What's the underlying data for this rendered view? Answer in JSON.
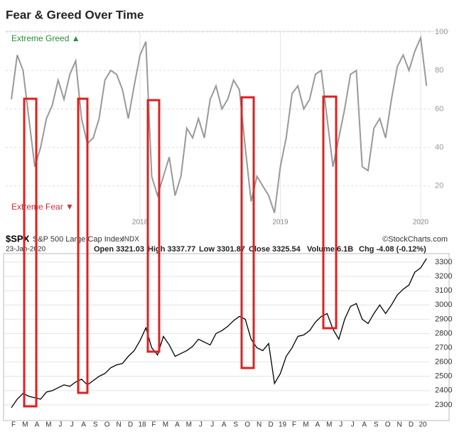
{
  "chart_data": [
    {
      "type": "line",
      "title": "Fear & Greed Over Time",
      "annotations": [
        "Extreme Greed ▲",
        "Extreme Fear ▼"
      ],
      "categories": [
        null,
        null,
        null,
        null,
        null,
        null,
        null,
        null,
        null,
        null,
        null,
        null,
        null,
        null,
        null,
        null,
        null,
        null,
        null,
        null,
        null,
        null,
        "2018",
        null,
        null,
        null,
        null,
        null,
        null,
        null,
        null,
        null,
        null,
        null,
        null,
        null,
        null,
        null,
        null,
        null,
        null,
        null,
        null,
        null,
        null,
        null,
        "2019",
        null,
        null,
        null,
        null,
        null,
        null,
        null,
        null,
        null,
        null,
        null,
        null,
        null,
        null,
        null,
        null,
        null,
        null,
        null,
        null,
        null,
        null,
        null,
        "2020",
        null
      ],
      "series": [
        {
          "color": "#999999",
          "values": [
            65,
            88,
            80,
            55,
            30,
            40,
            55,
            62,
            75,
            65,
            78,
            85,
            55,
            42,
            45,
            55,
            75,
            80,
            78,
            70,
            55,
            72,
            88,
            95,
            25,
            15,
            25,
            35,
            15,
            25,
            50,
            45,
            55,
            45,
            65,
            72,
            60,
            65,
            75,
            70,
            40,
            12,
            25,
            20,
            15,
            6,
            30,
            45,
            68,
            72,
            60,
            65,
            78,
            80,
            55,
            30,
            45,
            60,
            78,
            80,
            30,
            28,
            50,
            55,
            45,
            65,
            82,
            88,
            80,
            90,
            97,
            72
          ]
        }
      ],
      "ylim": [
        0,
        100
      ],
      "yticks": [
        20,
        40,
        60,
        80,
        100
      ],
      "grid": true
    },
    {
      "type": "line",
      "symbol": "$SPX",
      "name": "S&P 500 Large Cap Index",
      "exchange": "INDX",
      "source": "©StockCharts.com",
      "date": "23-Jan-2020",
      "stats": [
        "Open 3321.03",
        "High 3337.77",
        "Low 3301.87",
        "Close 3325.54",
        "Volume 6.1B",
        "Chg -4.08 (-0.12%)"
      ],
      "categories": [
        "F",
        null,
        "M",
        null,
        "A",
        null,
        "M",
        null,
        "J",
        null,
        "J",
        null,
        "A",
        null,
        "S",
        null,
        "O",
        null,
        "N",
        null,
        "D",
        null,
        "18",
        null,
        "F",
        null,
        "M",
        null,
        "A",
        null,
        "M",
        null,
        "J",
        null,
        "J",
        null,
        "A",
        null,
        "S",
        null,
        "O",
        null,
        "N",
        null,
        "D",
        null,
        "19",
        null,
        "F",
        null,
        "M",
        null,
        "A",
        null,
        "M",
        null,
        "J",
        null,
        "J",
        null,
        "A",
        null,
        "S",
        null,
        "O",
        null,
        "N",
        null,
        "D",
        null,
        "20",
        null
      ],
      "series": [
        {
          "color": "#000000",
          "values": [
            2280,
            2340,
            2380,
            2360,
            2350,
            2340,
            2390,
            2400,
            2420,
            2440,
            2430,
            2460,
            2480,
            2440,
            2470,
            2500,
            2520,
            2560,
            2580,
            2590,
            2640,
            2680,
            2750,
            2840,
            2700,
            2650,
            2780,
            2720,
            2640,
            2660,
            2680,
            2710,
            2760,
            2740,
            2720,
            2800,
            2820,
            2850,
            2890,
            2920,
            2900,
            2760,
            2700,
            2680,
            2730,
            2450,
            2520,
            2640,
            2700,
            2780,
            2790,
            2820,
            2880,
            2920,
            2940,
            2830,
            2760,
            2900,
            2990,
            3010,
            2900,
            2870,
            2940,
            3000,
            2940,
            3000,
            3070,
            3110,
            3140,
            3230,
            3260,
            3325
          ]
        }
      ],
      "ylim": [
        2200,
        3350
      ],
      "yticks": [
        2300,
        2400,
        2500,
        2600,
        2700,
        2800,
        2900,
        3000,
        3100,
        3200,
        3300
      ],
      "grid": true
    }
  ]
}
